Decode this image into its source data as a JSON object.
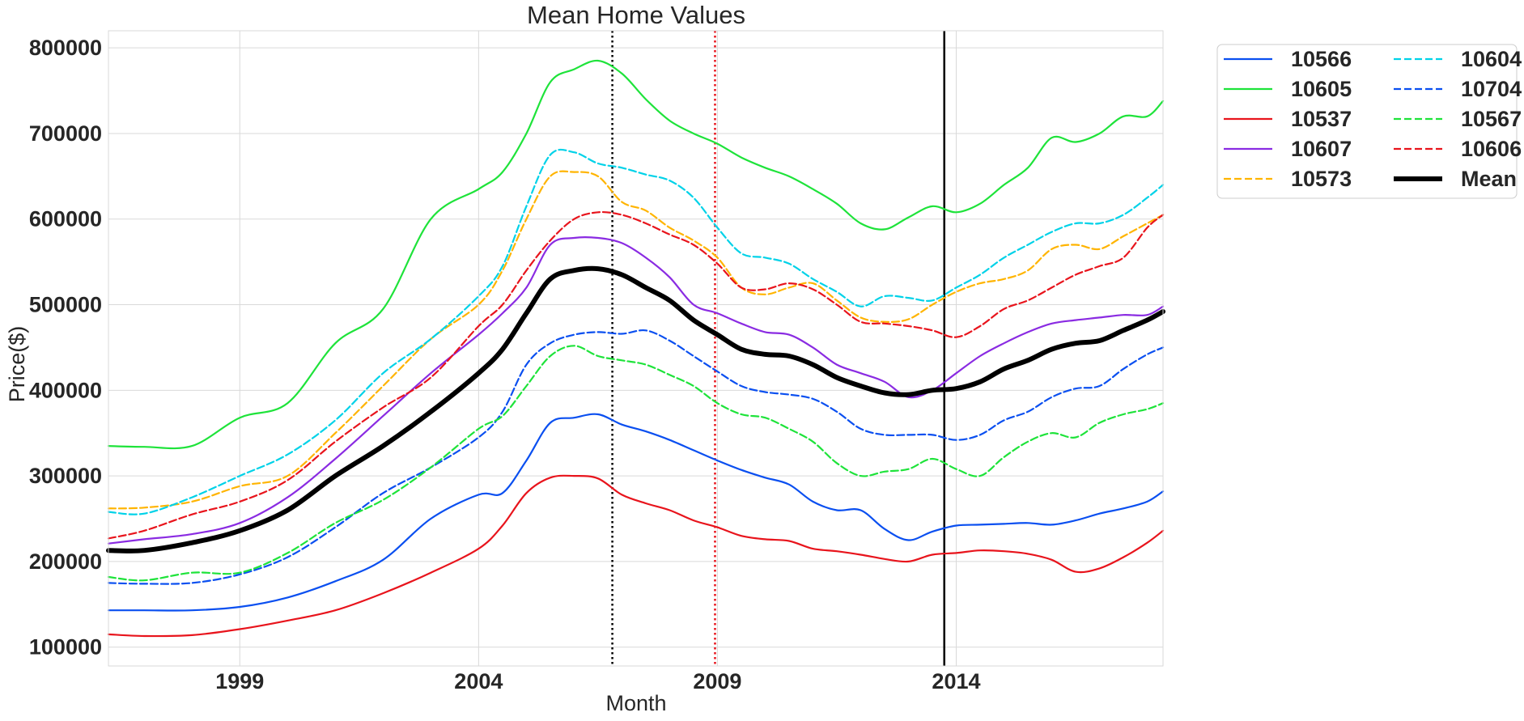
{
  "chart_data": {
    "type": "line",
    "title": "Mean Home Values",
    "xlabel": "Month",
    "ylabel": "Price($)",
    "xlim": [
      1996.25,
      2018.33
    ],
    "ylim": [
      78000,
      820000
    ],
    "x_ticks": [
      1999,
      2004,
      2009,
      2014
    ],
    "y_ticks": [
      100000,
      200000,
      300000,
      400000,
      500000,
      600000,
      700000,
      800000
    ],
    "grid": true,
    "legend_position": "outside-top-right",
    "legend_columns": 2,
    "x": [
      1996.25,
      1997,
      1998,
      1999,
      2000,
      2001,
      2002,
      2003,
      2004,
      2004.5,
      2005,
      2005.5,
      2006,
      2006.5,
      2007,
      2007.5,
      2008,
      2008.5,
      2009,
      2009.5,
      2010,
      2010.5,
      2011,
      2011.5,
      2012,
      2012.5,
      2013,
      2013.5,
      2014,
      2014.5,
      2015,
      2015.5,
      2016,
      2016.5,
      2017,
      2017.5,
      2018,
      2018.33
    ],
    "series": [
      {
        "name": "10566",
        "color": "#0a4ff0",
        "dash": "solid",
        "width": 2.2,
        "values": [
          143000,
          143000,
          143000,
          147000,
          158000,
          177000,
          202000,
          250000,
          278000,
          280000,
          318000,
          362000,
          368000,
          372000,
          360000,
          352000,
          342000,
          330000,
          318000,
          307000,
          298000,
          290000,
          270000,
          260000,
          260000,
          238000,
          225000,
          235000,
          242000,
          243000,
          244000,
          245000,
          243000,
          248000,
          256000,
          262000,
          270000,
          282000
        ]
      },
      {
        "name": "10605",
        "color": "#1ee33a",
        "dash": "solid",
        "width": 2.2,
        "values": [
          335000,
          334000,
          335000,
          368000,
          385000,
          455000,
          495000,
          600000,
          635000,
          655000,
          700000,
          760000,
          775000,
          785000,
          770000,
          740000,
          715000,
          700000,
          688000,
          672000,
          660000,
          650000,
          635000,
          618000,
          595000,
          588000,
          602000,
          615000,
          608000,
          618000,
          640000,
          660000,
          695000,
          690000,
          700000,
          720000,
          720000,
          738000
        ]
      },
      {
        "name": "10537",
        "color": "#e8141c",
        "dash": "solid",
        "width": 2.2,
        "values": [
          115000,
          113000,
          114000,
          121000,
          131000,
          143000,
          163000,
          187000,
          215000,
          242000,
          280000,
          298000,
          300000,
          297000,
          278000,
          268000,
          260000,
          248000,
          240000,
          230000,
          226000,
          224000,
          215000,
          212000,
          208000,
          203000,
          200000,
          208000,
          210000,
          213000,
          212000,
          209000,
          202000,
          188000,
          192000,
          205000,
          222000,
          236000
        ]
      },
      {
        "name": "10607",
        "color": "#8a2be2",
        "dash": "solid",
        "width": 2.2,
        "values": [
          221000,
          226000,
          232000,
          245000,
          275000,
          320000,
          370000,
          420000,
          465000,
          490000,
          520000,
          570000,
          578000,
          578000,
          572000,
          555000,
          532000,
          500000,
          490000,
          478000,
          468000,
          465000,
          450000,
          430000,
          420000,
          410000,
          392000,
          400000,
          420000,
          440000,
          455000,
          468000,
          478000,
          482000,
          485000,
          488000,
          488000,
          498000
        ]
      },
      {
        "name": "10573",
        "color": "#ffb400",
        "dash": "dashed",
        "width": 2.2,
        "values": [
          262000,
          263000,
          270000,
          288000,
          300000,
          350000,
          405000,
          460000,
          500000,
          540000,
          600000,
          650000,
          655000,
          650000,
          620000,
          610000,
          590000,
          575000,
          555000,
          520000,
          512000,
          520000,
          525000,
          505000,
          485000,
          480000,
          483000,
          500000,
          515000,
          525000,
          530000,
          540000,
          565000,
          570000,
          565000,
          580000,
          595000,
          605000
        ]
      },
      {
        "name": "10604",
        "color": "#00d2e8",
        "dash": "dashed",
        "width": 2.2,
        "values": [
          258000,
          256000,
          275000,
          300000,
          325000,
          365000,
          420000,
          460000,
          510000,
          545000,
          615000,
          675000,
          678000,
          665000,
          660000,
          652000,
          645000,
          625000,
          590000,
          560000,
          555000,
          548000,
          530000,
          515000,
          498000,
          510000,
          508000,
          505000,
          520000,
          535000,
          555000,
          570000,
          585000,
          595000,
          595000,
          605000,
          625000,
          640000
        ]
      },
      {
        "name": "10704",
        "color": "#0a4ff0",
        "dash": "dashed",
        "width": 2.2,
        "values": [
          175000,
          174000,
          175000,
          185000,
          205000,
          240000,
          280000,
          310000,
          345000,
          375000,
          430000,
          455000,
          465000,
          468000,
          466000,
          470000,
          458000,
          440000,
          422000,
          405000,
          398000,
          395000,
          390000,
          375000,
          355000,
          348000,
          348000,
          348000,
          342000,
          348000,
          365000,
          375000,
          392000,
          402000,
          405000,
          425000,
          442000,
          450000
        ]
      },
      {
        "name": "10567",
        "color": "#1ee33a",
        "dash": "dashed",
        "width": 2.2,
        "values": [
          182000,
          178000,
          187000,
          187000,
          210000,
          245000,
          272000,
          310000,
          355000,
          370000,
          405000,
          440000,
          452000,
          440000,
          435000,
          430000,
          418000,
          405000,
          385000,
          372000,
          368000,
          355000,
          340000,
          315000,
          300000,
          305000,
          308000,
          320000,
          308000,
          300000,
          322000,
          340000,
          350000,
          345000,
          362000,
          372000,
          378000,
          385000
        ]
      },
      {
        "name": "10606",
        "color": "#e8141c",
        "dash": "dashed",
        "width": 2.2,
        "values": [
          227000,
          236000,
          255000,
          270000,
          295000,
          340000,
          380000,
          415000,
          475000,
          500000,
          540000,
          575000,
          600000,
          608000,
          605000,
          595000,
          582000,
          570000,
          548000,
          520000,
          518000,
          525000,
          518000,
          500000,
          480000,
          478000,
          475000,
          470000,
          462000,
          475000,
          495000,
          505000,
          520000,
          535000,
          545000,
          555000,
          590000,
          605000
        ]
      },
      {
        "name": "Mean",
        "color": "#000000",
        "dash": "solid",
        "width": 6,
        "values": [
          213000,
          213000,
          222000,
          236000,
          260000,
          300000,
          335000,
          375000,
          420000,
          448000,
          490000,
          530000,
          540000,
          542000,
          535000,
          520000,
          505000,
          482000,
          465000,
          448000,
          442000,
          440000,
          430000,
          415000,
          405000,
          397000,
          395000,
          400000,
          402000,
          410000,
          425000,
          435000,
          448000,
          455000,
          458000,
          470000,
          482000,
          492000
        ]
      }
    ],
    "vertical_lines": [
      {
        "x": 2006.8,
        "color": "#000000",
        "dash": "dotted"
      },
      {
        "x": 2008.95,
        "color": "#e8141c",
        "dash": "dotted"
      },
      {
        "x": 2013.75,
        "color": "#000000",
        "dash": "solid"
      }
    ]
  }
}
